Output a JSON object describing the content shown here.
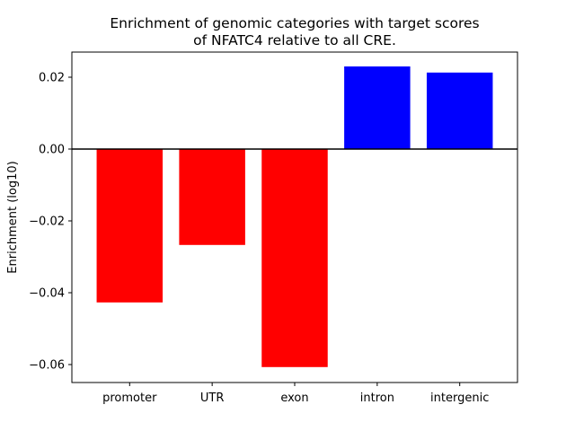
{
  "chart_data": {
    "type": "bar",
    "title_lines": [
      "Enrichment of genomic categories with target scores",
      "of NFATC4 relative to all CRE."
    ],
    "xlabel": "",
    "ylabel": "Enrichment (log10)",
    "categories": [
      "promoter",
      "UTR",
      "exon",
      "intron",
      "intergenic"
    ],
    "values": [
      -0.0427,
      -0.0267,
      -0.0607,
      0.023,
      0.0213
    ],
    "ylim": [
      -0.065,
      0.027
    ],
    "yticks": [
      0.02,
      0.0,
      -0.02,
      -0.04,
      -0.06
    ],
    "ytick_labels": [
      "0.02",
      "0.00",
      "−0.02",
      "−0.04",
      "−0.06"
    ],
    "colors": {
      "positive": "#0000ff",
      "negative": "#ff0000",
      "zero_line": "#000000"
    },
    "grid": false,
    "legend": "none"
  }
}
